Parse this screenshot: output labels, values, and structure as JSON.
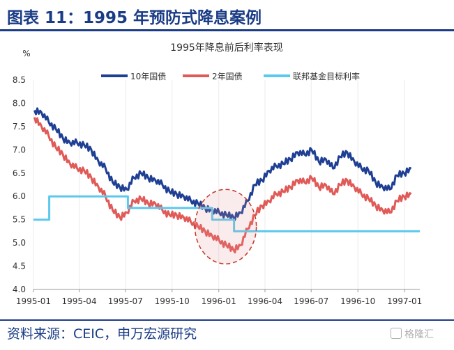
{
  "header": {
    "title": "图表 11：1995 年预防式降息案例"
  },
  "footer": {
    "source": "资料来源：CEIC，申万宏源研究",
    "watermark": "格隆汇"
  },
  "colors": {
    "brand": "#1a3c86",
    "s10y": "#1f3f94",
    "s2y": "#e05a57",
    "fed": "#5bc8ee",
    "annotation": "#c0392b",
    "grid": "#ebebeb"
  },
  "chart_data": {
    "type": "line",
    "title": "1995年降息前后利率表现",
    "ylabel": "%",
    "xlabel": "",
    "ylim": [
      4.0,
      8.5
    ],
    "yticks": [
      "4.0",
      "4.5",
      "5.0",
      "5.5",
      "6.0",
      "6.5",
      "7.0",
      "7.5",
      "8.0",
      "8.5"
    ],
    "xticks": [
      "1995-01",
      "1995-04",
      "1995-07",
      "1995-10",
      "1996-01",
      "1996-04",
      "1996-07",
      "1996-10",
      "1997-01"
    ],
    "legend_position": "top",
    "series": [
      {
        "name": "10年国债",
        "x": [
          "1995-01-03",
          "1995-01-17",
          "1995-01-31",
          "1995-02-14",
          "1995-02-28",
          "1995-03-14",
          "1995-03-28",
          "1995-04-11",
          "1995-04-25",
          "1995-05-09",
          "1995-05-23",
          "1995-06-06",
          "1995-06-20",
          "1995-07-04",
          "1995-07-18",
          "1995-08-01",
          "1995-08-15",
          "1995-08-29",
          "1995-09-12",
          "1995-09-26",
          "1995-10-10",
          "1995-10-24",
          "1995-11-07",
          "1995-11-21",
          "1995-12-05",
          "1995-12-19",
          "1996-01-02",
          "1996-01-16",
          "1996-01-30",
          "1996-02-13",
          "1996-02-27",
          "1996-03-12",
          "1996-03-26",
          "1996-04-09",
          "1996-04-23",
          "1996-05-07",
          "1996-05-21",
          "1996-06-04",
          "1996-06-18",
          "1996-07-02",
          "1996-07-16",
          "1996-07-30",
          "1996-08-13",
          "1996-08-27",
          "1996-09-10",
          "1996-09-24",
          "1996-10-08",
          "1996-10-22",
          "1996-11-05",
          "1996-11-19",
          "1996-12-03",
          "1996-12-17",
          "1996-12-31",
          "1997-01-14"
        ],
        "values": [
          7.85,
          7.8,
          7.6,
          7.45,
          7.25,
          7.15,
          7.15,
          7.1,
          7.0,
          6.75,
          6.6,
          6.3,
          6.2,
          6.15,
          6.4,
          6.5,
          6.4,
          6.35,
          6.25,
          6.1,
          6.05,
          6.0,
          5.9,
          5.85,
          5.75,
          5.7,
          5.65,
          5.6,
          5.55,
          5.65,
          5.9,
          6.25,
          6.35,
          6.55,
          6.65,
          6.7,
          6.8,
          6.95,
          6.9,
          7.0,
          6.75,
          6.8,
          6.6,
          6.85,
          6.95,
          6.75,
          6.6,
          6.55,
          6.3,
          6.2,
          6.15,
          6.45,
          6.5,
          6.6
        ]
      },
      {
        "name": "2年国债",
        "x": [
          "1995-01-03",
          "1995-01-17",
          "1995-01-31",
          "1995-02-14",
          "1995-02-28",
          "1995-03-14",
          "1995-03-28",
          "1995-04-11",
          "1995-04-25",
          "1995-05-09",
          "1995-05-23",
          "1995-06-06",
          "1995-06-20",
          "1995-07-04",
          "1995-07-18",
          "1995-08-01",
          "1995-08-15",
          "1995-08-29",
          "1995-09-12",
          "1995-09-26",
          "1995-10-10",
          "1995-10-24",
          "1995-11-07",
          "1995-11-21",
          "1995-12-05",
          "1995-12-19",
          "1996-01-02",
          "1996-01-16",
          "1996-01-30",
          "1996-02-13",
          "1996-02-27",
          "1996-03-12",
          "1996-03-26",
          "1996-04-09",
          "1996-04-23",
          "1996-05-07",
          "1996-05-21",
          "1996-06-04",
          "1996-06-18",
          "1996-07-02",
          "1996-07-16",
          "1996-07-30",
          "1996-08-13",
          "1996-08-27",
          "1996-09-10",
          "1996-09-24",
          "1996-10-08",
          "1996-10-22",
          "1996-11-05",
          "1996-11-19",
          "1996-12-03",
          "1996-12-17",
          "1996-12-31",
          "1997-01-14"
        ],
        "values": [
          7.7,
          7.5,
          7.3,
          7.05,
          6.9,
          6.7,
          6.6,
          6.55,
          6.4,
          6.2,
          6.0,
          5.7,
          5.55,
          5.65,
          5.9,
          5.95,
          5.85,
          5.85,
          5.7,
          5.6,
          5.6,
          5.55,
          5.45,
          5.35,
          5.25,
          5.15,
          5.05,
          4.95,
          4.85,
          4.95,
          5.3,
          5.6,
          5.8,
          5.9,
          6.05,
          6.1,
          6.2,
          6.35,
          6.3,
          6.4,
          6.2,
          6.25,
          6.05,
          6.25,
          6.35,
          6.2,
          6.05,
          5.95,
          5.8,
          5.7,
          5.65,
          5.9,
          6.0,
          6.05
        ]
      },
      {
        "name": "联邦基金目标利率",
        "step": true,
        "x": [
          "1995-01-01",
          "1995-02-01",
          "1995-07-06",
          "1995-12-19",
          "1996-01-31",
          "1997-01-31"
        ],
        "values": [
          5.5,
          6.0,
          5.75,
          5.5,
          5.25,
          5.25
        ]
      }
    ],
    "annotations": [
      {
        "type": "dashed-ellipse",
        "x": [
          "1995-11-15",
          "1996-03-15"
        ],
        "y": [
          4.55,
          6.15
        ]
      }
    ]
  }
}
